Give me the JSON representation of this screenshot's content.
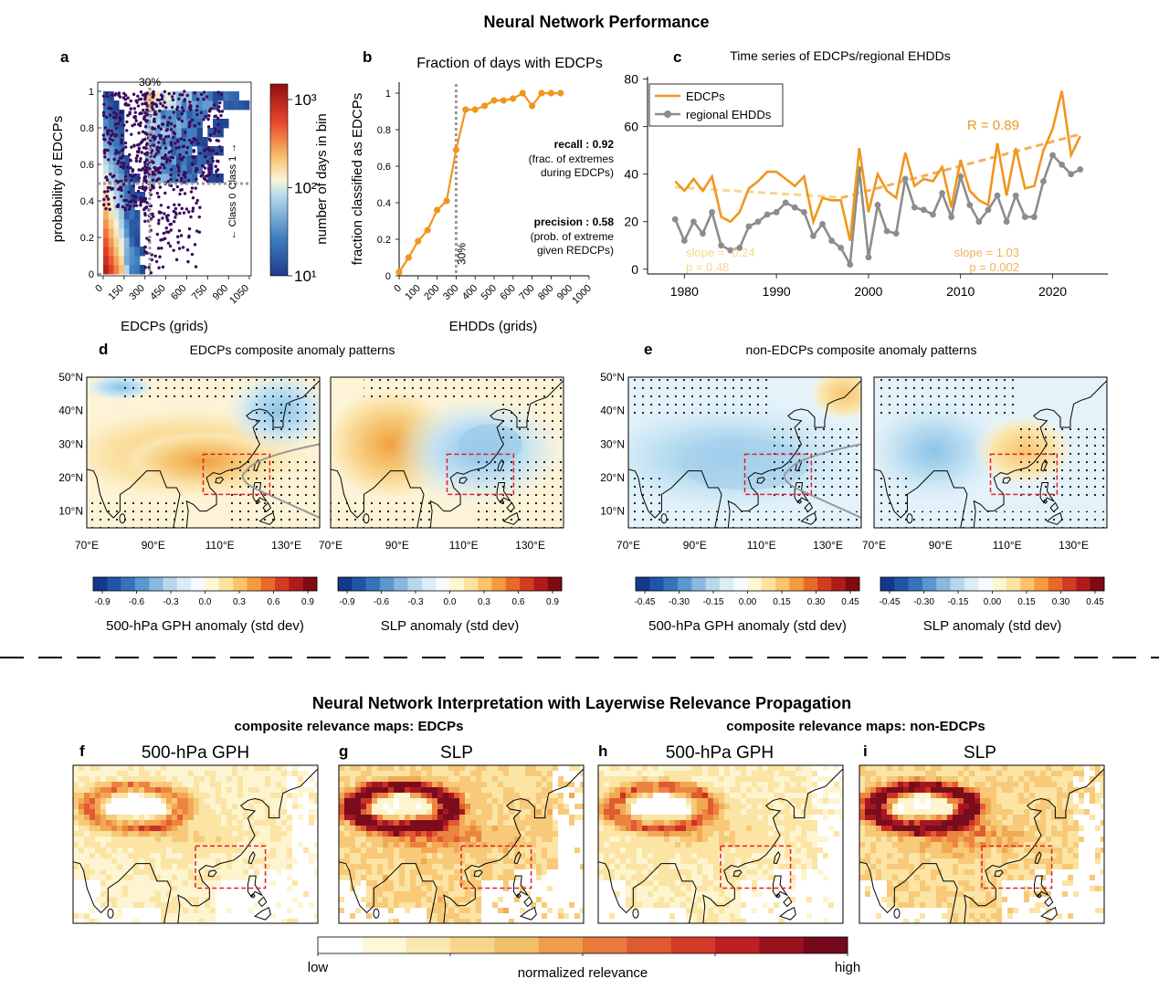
{
  "top_title": "Neural Network Performance",
  "bottom_title": "Neural Network Interpretation with Layerwise Relevance Propagation",
  "panels": {
    "a": {
      "letter": "a",
      "threshold_label": "30%"
    },
    "b": {
      "letter": "b"
    },
    "c": {
      "letter": "c"
    },
    "d": {
      "letter": "d",
      "title": "EDCPs composite anomaly patterns"
    },
    "e": {
      "letter": "e",
      "title": "non-EDCPs composite anomaly patterns"
    },
    "f": {
      "letter": "f",
      "title": "500-hPa GPH"
    },
    "g": {
      "letter": "g",
      "title": "SLP"
    },
    "h": {
      "letter": "h",
      "title": "500-hPa GPH"
    },
    "i": {
      "letter": "i",
      "title": "SLP"
    }
  },
  "relevance_groups": {
    "edcps": "composite relevance maps: EDCPs",
    "non_edcps": "composite relevance maps: non-EDCPs"
  },
  "chart_data": [
    {
      "id": "a",
      "type": "heatmap",
      "xlabel": "EDCPs (grids)",
      "ylabel": "probability of EDCPs",
      "xticks": [
        "0",
        "150",
        "300",
        "450",
        "600",
        "750",
        "900",
        "1050"
      ],
      "yticks": [
        "0",
        "0.2",
        "0.4",
        "0.6",
        "0.8",
        "1"
      ],
      "xlim": [
        0,
        1050
      ],
      "ylim": [
        0,
        1
      ],
      "colorbar": {
        "label": "number of days in bin",
        "ticks": [
          "10¹",
          "10²",
          "10³"
        ],
        "scale": "log",
        "range": [
          10,
          1500
        ]
      },
      "threshold_x": 300,
      "threshold_y": 0.5,
      "class_labels": [
        "Class 1 →",
        "← Class 0"
      ]
    },
    {
      "id": "b",
      "type": "line",
      "title": "Fraction of days with EDCPs",
      "xlabel": "EHDDs (grids)",
      "ylabel": "fraction classified as EDCPs",
      "x": [
        0,
        50,
        100,
        150,
        200,
        250,
        300,
        350,
        400,
        450,
        500,
        550,
        600,
        650,
        700,
        750,
        800,
        850
      ],
      "y": [
        0.02,
        0.1,
        0.19,
        0.25,
        0.36,
        0.41,
        0.69,
        0.91,
        0.91,
        0.93,
        0.96,
        0.96,
        0.97,
        1.0,
        0.93,
        1.0,
        1.0,
        1.0
      ],
      "xticks": [
        "0",
        "100",
        "200",
        "300",
        "400",
        "500",
        "600",
        "700",
        "800",
        "900",
        "1000"
      ],
      "yticks": [
        "0",
        "0.2",
        "0.4",
        "0.6",
        "0.8",
        "1"
      ],
      "xlim": [
        0,
        1000
      ],
      "ylim": [
        0,
        1.05
      ],
      "threshold_label": "30%",
      "annotations": {
        "recall_title": "recall : 0.92",
        "recall_lines": [
          "(frac. of extremes",
          "during EDCPs)"
        ],
        "precision_title": "precision : 0.58",
        "precision_lines": [
          "(prob. of extreme",
          "given REDCPs)"
        ]
      }
    },
    {
      "id": "c",
      "type": "line",
      "title": "Time series of EDCPs/regional EHDDs",
      "x": [
        1979,
        1980,
        1981,
        1982,
        1983,
        1984,
        1985,
        1986,
        1987,
        1988,
        1989,
        1990,
        1991,
        1992,
        1993,
        1994,
        1995,
        1996,
        1997,
        1998,
        1999,
        2000,
        2001,
        2002,
        2003,
        2004,
        2005,
        2006,
        2007,
        2008,
        2009,
        2010,
        2011,
        2012,
        2013,
        2014,
        2015,
        2016,
        2017,
        2018,
        2019,
        2020,
        2021,
        2022,
        2023
      ],
      "series": [
        {
          "name": "EDCPs",
          "color": "#f0961e",
          "values": [
            37,
            33,
            38,
            33,
            39,
            22,
            20,
            24,
            34,
            37,
            41,
            41,
            38,
            35,
            39,
            20,
            30,
            29,
            29,
            12,
            51,
            24,
            40,
            33,
            30,
            49,
            35,
            38,
            37,
            43,
            26,
            46,
            33,
            29,
            27,
            53,
            31,
            51,
            34,
            35,
            50,
            59,
            75,
            48,
            56
          ]
        },
        {
          "name": "regional EHDDs",
          "color": "#8c8c8c",
          "values": [
            21,
            12,
            20,
            15,
            24,
            10,
            8,
            9,
            18,
            20,
            23,
            24,
            28,
            26,
            24,
            14,
            19,
            12,
            9,
            2,
            42,
            5,
            27,
            16,
            15,
            38,
            26,
            25,
            23,
            32,
            22,
            39,
            27,
            20,
            25,
            31,
            20,
            31,
            22,
            22,
            37,
            48,
            44,
            40,
            42
          ]
        }
      ],
      "yticks": [
        "0",
        "20",
        "40",
        "60",
        "80"
      ],
      "xticks": [
        "1980",
        "1990",
        "2000",
        "2010",
        "2020"
      ],
      "ylim": [
        -2,
        81
      ],
      "xlim": [
        1976,
        2026
      ],
      "correlation_label": "R = 0.89",
      "trend1": {
        "label": "slope = -0.24",
        "p": "p = 0.48",
        "x": [
          1979,
          1997
        ],
        "y": [
          34.5,
          30.2
        ],
        "color": "#f3d98a"
      },
      "trend2": {
        "label": "slope = 1.03",
        "p": "p = 0.002",
        "x": [
          1997,
          2023
        ],
        "y": [
          30.0,
          56.8
        ],
        "color": "#f0b15a"
      }
    }
  ],
  "colorbars": {
    "d1": {
      "label": "500-hPa GPH anomaly (std dev)",
      "ticks": [
        "-0.9",
        "-0.6",
        "-0.3",
        "0.0",
        "0.3",
        "0.6",
        "0.9"
      ]
    },
    "d2": {
      "label": "SLP anomaly (std dev)",
      "ticks": [
        "-0.9",
        "-0.6",
        "-0.3",
        "0.0",
        "0.3",
        "0.6",
        "0.9"
      ]
    },
    "e1": {
      "label": "500-hPa GPH anomaly (std dev)",
      "ticks": [
        "-0.45",
        "-0.30",
        "-0.15",
        "0.00",
        "0.15",
        "0.30",
        "0.45"
      ]
    },
    "e2": {
      "label": "SLP anomaly (std dev)",
      "ticks": [
        "-0.45",
        "-0.30",
        "-0.15",
        "0.00",
        "0.15",
        "0.30",
        "0.45"
      ]
    },
    "relevance": {
      "label": "normalized relevance",
      "low": "low",
      "high": "high"
    }
  },
  "map_axes": {
    "lat_labels": [
      "50°N",
      "40°N",
      "30°N",
      "20°N",
      "10°N"
    ],
    "lon_labels": [
      "70°E",
      "90°E",
      "110°E",
      "130°E"
    ]
  }
}
